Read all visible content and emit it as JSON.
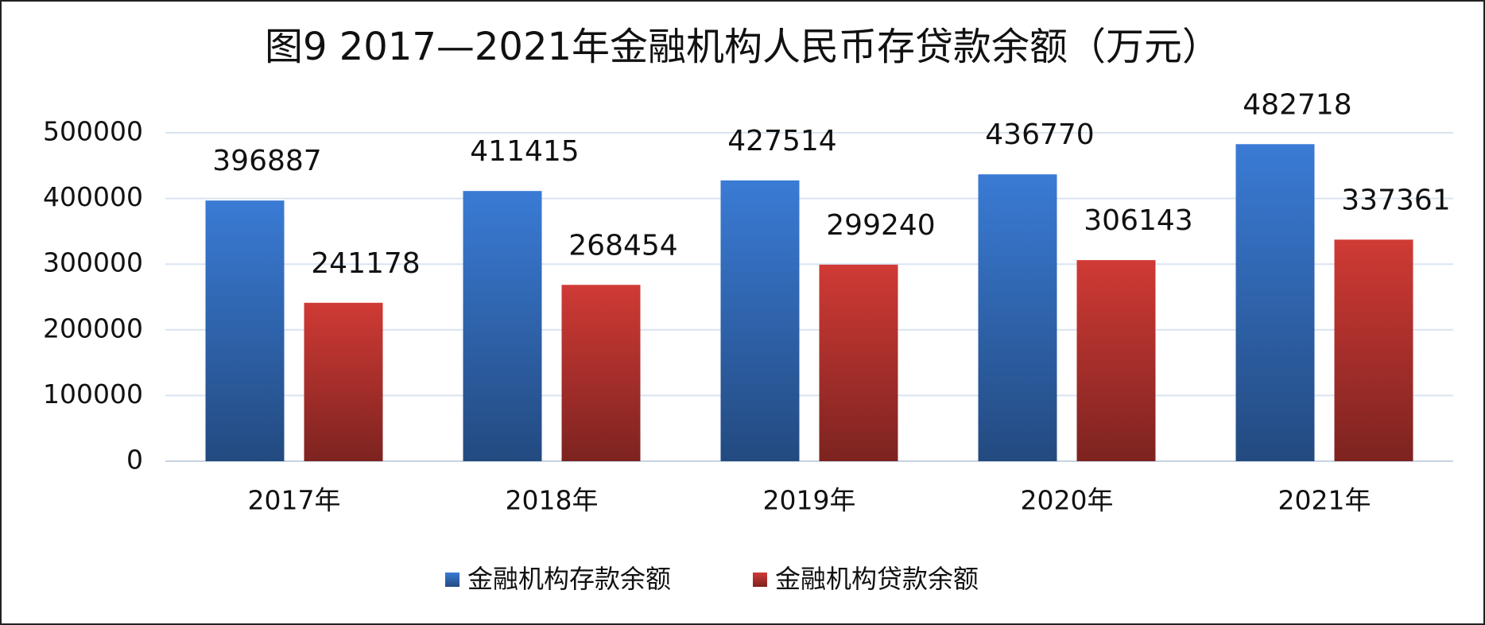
{
  "chart_data": {
    "type": "bar",
    "title": "图9  2017—2021年金融机构人民币存贷款余额（万元）",
    "categories": [
      "2017年",
      "2018年",
      "2019年",
      "2020年",
      "2021年"
    ],
    "series": [
      {
        "name": "金融机构存款余额",
        "color": "#3a7bd5",
        "values": [
          396887,
          411415,
          427514,
          436770,
          482718
        ]
      },
      {
        "name": "金融机构贷款余额",
        "color": "#d03a35",
        "values": [
          241178,
          268454,
          299240,
          306143,
          337361
        ]
      }
    ],
    "ylim": [
      0,
      500000
    ],
    "yticks": [
      0,
      100000,
      200000,
      300000,
      400000,
      500000
    ],
    "grid": true,
    "legend": "bottom"
  }
}
